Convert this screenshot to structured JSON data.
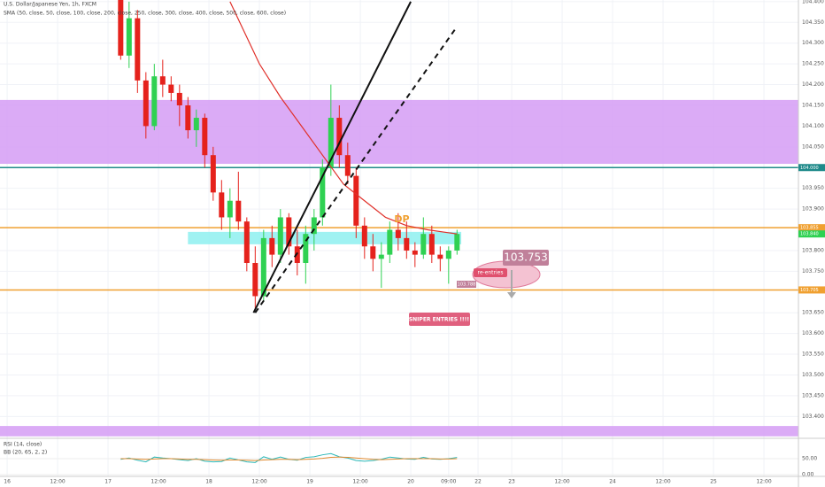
{
  "chart_data": {
    "type": "candlestick",
    "title": "U.S. Dollar/Japanese Yen, 1h, FXCM",
    "subtitle": "SMA (50, close, 50, close, 100, close, 200, close, 250, close, 300, close, 400, close, 500, close, 600, close)",
    "x": [
      27,
      29,
      31,
      33,
      35,
      37,
      39,
      41,
      43,
      45,
      47,
      49,
      51,
      53,
      55,
      57,
      59,
      61,
      63,
      65,
      67,
      69,
      71,
      73,
      75,
      77,
      79,
      81,
      83,
      85,
      87,
      89,
      91,
      93,
      95,
      97,
      99,
      101,
      103,
      105,
      107
    ],
    "open": [
      104.42,
      104.27,
      104.36,
      104.21,
      104.1,
      104.22,
      104.2,
      104.18,
      104.15,
      104.09,
      104.12,
      104.03,
      103.94,
      103.88,
      103.92,
      103.87,
      103.77,
      103.69,
      103.83,
      103.79,
      103.88,
      103.81,
      103.77,
      103.84,
      103.88,
      104.0,
      104.12,
      104.03,
      103.98,
      103.86,
      103.81,
      103.78,
      103.79,
      103.85,
      103.83,
      103.8,
      103.79,
      103.84,
      103.79,
      103.78,
      103.8
    ],
    "high": [
      104.44,
      104.4,
      104.38,
      104.23,
      104.25,
      104.26,
      104.22,
      104.2,
      104.17,
      104.14,
      104.13,
      104.05,
      103.97,
      103.95,
      103.99,
      103.88,
      103.81,
      103.85,
      103.86,
      103.9,
      103.89,
      103.85,
      103.86,
      103.9,
      104.02,
      104.2,
      104.15,
      104.06,
      104.0,
      103.88,
      103.84,
      103.82,
      103.87,
      103.89,
      103.87,
      103.82,
      103.88,
      103.86,
      103.81,
      103.81,
      103.85
    ],
    "low": [
      104.26,
      104.24,
      104.18,
      104.07,
      104.09,
      104.17,
      104.16,
      104.1,
      104.07,
      104.05,
      104.0,
      103.92,
      103.85,
      103.83,
      103.85,
      103.75,
      103.66,
      103.68,
      103.76,
      103.77,
      103.79,
      103.74,
      103.72,
      103.8,
      103.86,
      103.98,
      104.0,
      103.96,
      103.83,
      103.78,
      103.75,
      103.71,
      103.77,
      103.8,
      103.78,
      103.76,
      103.78,
      103.77,
      103.75,
      103.72,
      103.79
    ],
    "close": [
      104.27,
      104.36,
      104.21,
      104.1,
      104.22,
      104.2,
      104.18,
      104.15,
      104.09,
      104.12,
      104.03,
      103.94,
      103.88,
      103.92,
      103.87,
      103.77,
      103.69,
      103.83,
      103.79,
      103.88,
      103.81,
      103.77,
      103.84,
      103.88,
      104.0,
      104.12,
      104.03,
      103.98,
      103.86,
      103.81,
      103.78,
      103.79,
      103.85,
      103.83,
      103.8,
      103.79,
      103.84,
      103.79,
      103.78,
      103.8,
      103.84
    ],
    "up_color": "#2fd152",
    "down_color": "#e5221c",
    "sma": {
      "color": "#e0302a",
      "x": [
        53,
        60,
        65,
        70,
        75,
        80,
        85,
        90,
        95,
        100,
        107
      ],
      "values": [
        104.4,
        104.25,
        104.17,
        104.1,
        104.03,
        103.96,
        103.92,
        103.88,
        103.86,
        103.85,
        103.84
      ]
    },
    "xlim": [
      -1.7,
      188.2
    ],
    "ylim": [
      103.39,
      104.404
    ],
    "xticks": [
      {
        "value": 0,
        "label": "16"
      },
      {
        "value": 12,
        "label": "12:00"
      },
      {
        "value": 24,
        "label": "17"
      },
      {
        "value": 36,
        "label": "12:00"
      },
      {
        "value": 48,
        "label": "18"
      },
      {
        "value": 60,
        "label": "12:00"
      },
      {
        "value": 72,
        "label": "19"
      },
      {
        "value": 84,
        "label": "12:00"
      },
      {
        "value": 96,
        "label": "20"
      },
      {
        "value": 105,
        "label": "09:00"
      },
      {
        "value": 112,
        "label": "22"
      },
      {
        "value": 120,
        "label": "23"
      },
      {
        "value": 132,
        "label": "12:00"
      },
      {
        "value": 144,
        "label": "24"
      },
      {
        "value": 156,
        "label": "12:00"
      },
      {
        "value": 168,
        "label": "25"
      },
      {
        "value": 180,
        "label": "12:00"
      }
    ],
    "yticks": [
      {
        "value": 104.4,
        "label": "104.400"
      },
      {
        "value": 104.35,
        "label": "104.350"
      },
      {
        "value": 104.3,
        "label": "104.300"
      },
      {
        "value": 104.25,
        "label": "104.250"
      },
      {
        "value": 104.2,
        "label": "104.200"
      },
      {
        "value": 104.15,
        "label": "104.150"
      },
      {
        "value": 104.1,
        "label": "104.100"
      },
      {
        "value": 104.05,
        "label": "104.050"
      },
      {
        "value": 103.95,
        "label": "103.950"
      },
      {
        "value": 103.9,
        "label": "103.900"
      },
      {
        "value": 103.8,
        "label": "103.800"
      },
      {
        "value": 103.75,
        "label": "103.750"
      },
      {
        "value": 103.65,
        "label": "103.650"
      },
      {
        "value": 103.6,
        "label": "103.600"
      },
      {
        "value": 103.55,
        "label": "103.550"
      },
      {
        "value": 103.5,
        "label": "103.500"
      },
      {
        "value": 103.45,
        "label": "103.450"
      },
      {
        "value": 103.4,
        "label": "103.400"
      }
    ],
    "grid": true,
    "zones": [
      {
        "from": 104.163,
        "to": 104.009,
        "color": "#d59cf5",
        "x": [
          -1.7,
          188.2
        ]
      },
      {
        "from": 103.845,
        "to": 103.815,
        "color": "#8ef0f0",
        "x": [
          43,
          108
        ]
      },
      {
        "from": 103.377,
        "to": 103.352,
        "color": "#d59cf5",
        "x": [
          -1.7,
          188.2
        ]
      }
    ],
    "levels": [
      {
        "value": 104.0,
        "color": "#1f8a8a",
        "label": "104.000"
      },
      {
        "value": 103.855,
        "color": "#f0a030",
        "label": "103.855"
      },
      {
        "value": 103.705,
        "color": "#f0a030",
        "label": "103.705"
      }
    ],
    "last_price": {
      "value": 103.84,
      "label": "103.840",
      "color": "#2fd152"
    },
    "trend_lines": [
      {
        "points": [
          [
            58.6,
            103.65
          ],
          [
            96,
            104.4
          ]
        ],
        "dashed": false
      },
      {
        "points": [
          [
            59,
            103.65
          ],
          [
            107,
            104.34
          ]
        ],
        "dashed": true
      }
    ],
    "annotations": {
      "price": 103.753,
      "reentries": "re-entries",
      "sniper": "SNIPER ENTRIES !!!!",
      "dp": "DP",
      "tag": 103.788
    },
    "rsi": {
      "title": "RSI (14, close)",
      "title2": "BB (20, 65, 2, 2)",
      "ylim": [
        0,
        100
      ],
      "yticks": [
        {
          "value": 50,
          "label": "50.00"
        },
        {
          "value": 0,
          "label": "0.00"
        }
      ],
      "series": [
        {
          "color": "#2bb8b8",
          "values": [
            48,
            52,
            45,
            40,
            55,
            52,
            50,
            47,
            44,
            50,
            42,
            40,
            41,
            52,
            46,
            40,
            38,
            56,
            48,
            55,
            48,
            45,
            54,
            56,
            62,
            66,
            56,
            52,
            44,
            42,
            44,
            48,
            55,
            52,
            49,
            48,
            54,
            49,
            48,
            50,
            54
          ]
        },
        {
          "color": "#e08a30",
          "values": [
            50,
            50,
            49,
            48,
            49,
            50,
            50,
            49,
            48,
            48,
            47,
            46,
            45,
            46,
            46,
            45,
            44,
            46,
            47,
            48,
            48,
            47,
            48,
            49,
            51,
            54,
            55,
            54,
            52,
            50,
            48,
            47,
            48,
            49,
            50,
            50,
            50,
            50,
            49,
            49,
            50
          ]
        }
      ]
    }
  }
}
